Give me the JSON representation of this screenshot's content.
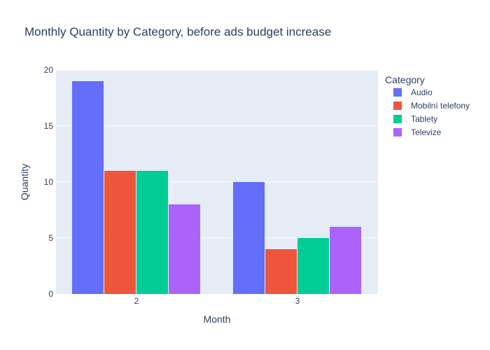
{
  "chart_data": {
    "type": "bar",
    "title": "Monthly Quantity by Category, before ads budget increase",
    "xlabel": "Month",
    "ylabel": "Quantity",
    "categories": [
      "2",
      "3"
    ],
    "ylim": [
      0,
      20
    ],
    "yticks": [
      0,
      5,
      10,
      15,
      20
    ],
    "grid": true,
    "legend": {
      "title": "Category",
      "placement": "right"
    },
    "series": [
      {
        "name": "Audio",
        "color": "#636efa",
        "values": [
          19,
          10
        ]
      },
      {
        "name": "Mobilní telefony",
        "color": "#ef553b",
        "values": [
          11,
          4
        ]
      },
      {
        "name": "Tablety",
        "color": "#00cc96",
        "values": [
          11,
          5
        ]
      },
      {
        "name": "Televize",
        "color": "#ab63fa",
        "values": [
          8,
          6
        ]
      }
    ],
    "plot_bg": "#e5ecf6"
  }
}
